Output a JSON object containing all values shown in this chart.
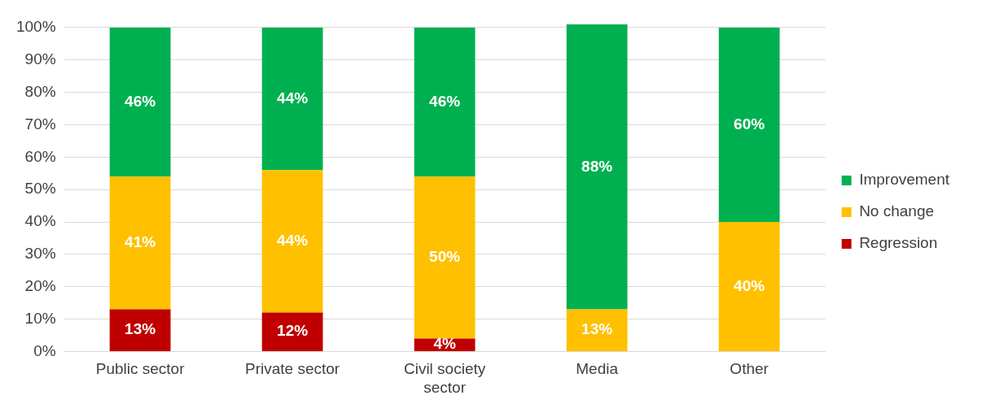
{
  "chart_data": {
    "type": "bar",
    "stacked": true,
    "categories": [
      "Public sector",
      "Private sector",
      "Civil society sector",
      "Media",
      "Other"
    ],
    "series": [
      {
        "name": "Regression",
        "color": "#c00000",
        "values": [
          13,
          12,
          4,
          null,
          null
        ],
        "value_labels": [
          "13%",
          "12%",
          "4%",
          null,
          null
        ]
      },
      {
        "name": "No change",
        "color": "#ffc000",
        "values": [
          41,
          44,
          50,
          13,
          40
        ],
        "value_labels": [
          "41%",
          "44%",
          "50%",
          "13%",
          "40%"
        ]
      },
      {
        "name": "Improvement",
        "color": "#00b050",
        "values": [
          46,
          44,
          46,
          88,
          60
        ],
        "value_labels": [
          "46%",
          "44%",
          "46%",
          "88%",
          "60%"
        ]
      }
    ],
    "ylim": [
      0,
      101
    ],
    "yticks": [
      {
        "value": 0,
        "label": "0%"
      },
      {
        "value": 10,
        "label": "10%"
      },
      {
        "value": 20,
        "label": "20%"
      },
      {
        "value": 30,
        "label": "30%"
      },
      {
        "value": 40,
        "label": "40%"
      },
      {
        "value": 50,
        "label": "50%"
      },
      {
        "value": 60,
        "label": "60%"
      },
      {
        "value": 70,
        "label": "70%"
      },
      {
        "value": 80,
        "label": "80%"
      },
      {
        "value": 90,
        "label": "90%"
      },
      {
        "value": 100,
        "label": "100%"
      }
    ],
    "grid": "y",
    "legend": "right"
  }
}
